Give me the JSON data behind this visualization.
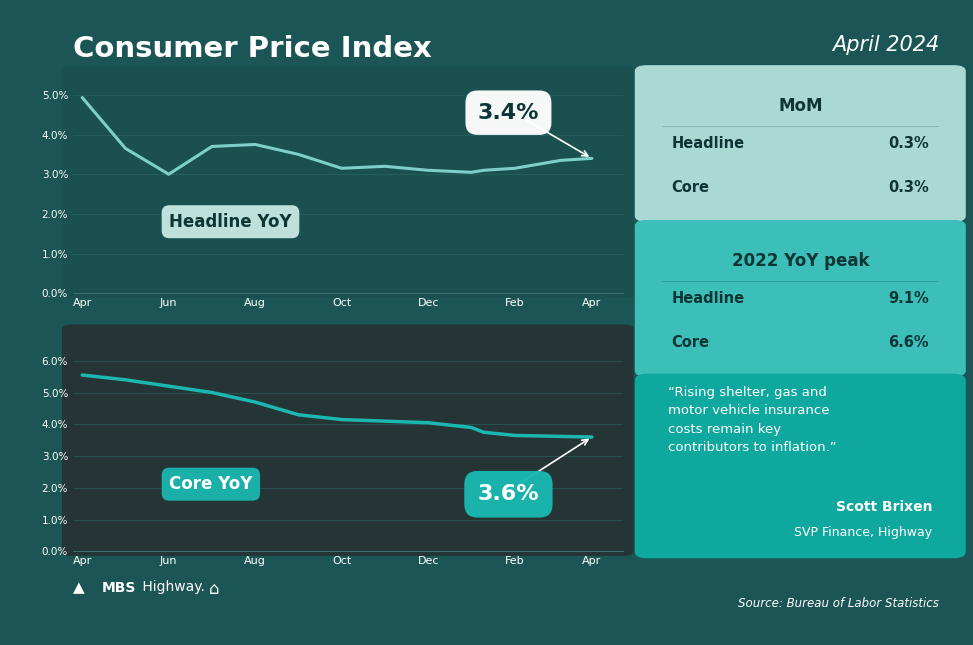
{
  "title": "Consumer Price Index",
  "subtitle": "April 2024",
  "bg_color": "#1b5555",
  "chart1_bg": "#1a5050",
  "chart2_bg": "#253535",
  "headline_yoy_y": [
    4.93,
    3.65,
    3.0,
    3.7,
    3.75,
    3.5,
    3.15,
    3.2,
    3.1,
    3.05,
    3.1,
    3.15,
    3.35,
    3.4
  ],
  "headline_yoy_x_numeric": [
    0,
    1.4,
    2.8,
    4.2,
    5.6,
    7.0,
    8.4,
    9.8,
    11.2,
    12.6,
    13.0,
    14.0,
    15.5,
    16.5
  ],
  "core_yoy_y": [
    5.55,
    5.4,
    5.2,
    5.0,
    4.7,
    4.3,
    4.15,
    4.1,
    4.05,
    3.9,
    3.75,
    3.65,
    3.62,
    3.6
  ],
  "core_yoy_x_numeric": [
    0,
    1.4,
    2.8,
    4.2,
    5.6,
    7.0,
    8.4,
    9.8,
    11.2,
    12.6,
    13.0,
    14.0,
    15.5,
    16.5
  ],
  "xtick_pos": [
    0,
    2.8,
    5.6,
    8.4,
    11.2,
    14.0,
    16.5
  ],
  "xtick_labels": [
    "Apr",
    "Jun",
    "Aug",
    "Oct",
    "Dec",
    "Feb",
    "Apr"
  ],
  "headline_end_value": "3.4%",
  "core_end_value": "3.6%",
  "mom_title": "MoM",
  "mom_headline_label": "Headline",
  "mom_headline_val": "0.3%",
  "mom_core_label": "Core",
  "mom_core_val": "0.3%",
  "peak_title": "2022 YoY peak",
  "peak_headline_label": "Headline",
  "peak_headline_val": "9.1%",
  "peak_core_label": "Core",
  "peak_core_val": "6.6%",
  "quote_line1": "“Rising shelter, gas and",
  "quote_line2": "motor vehicle insurance",
  "quote_line3": "costs remain key",
  "quote_line4": "contributors to inflation.”",
  "quote_author": "Scott Brixen",
  "quote_role": "SVP Finance, Highway",
  "source": "Source: Bureau of Labor Statistics",
  "mom_box_color": "#aad8d3",
  "peak_box_color": "#3cbfb8",
  "quote_box_color": "#0fa89e",
  "line_color1": "#7ecfca",
  "line_color2": "#1ab8b0",
  "label_box_color1": "#c5e5e1",
  "label_box_color2": "#1ab8b0",
  "text_dark": "#0d3535",
  "text_white": "#ffffff",
  "grid_color": "#2e6666",
  "spine_color": "#3a7070"
}
